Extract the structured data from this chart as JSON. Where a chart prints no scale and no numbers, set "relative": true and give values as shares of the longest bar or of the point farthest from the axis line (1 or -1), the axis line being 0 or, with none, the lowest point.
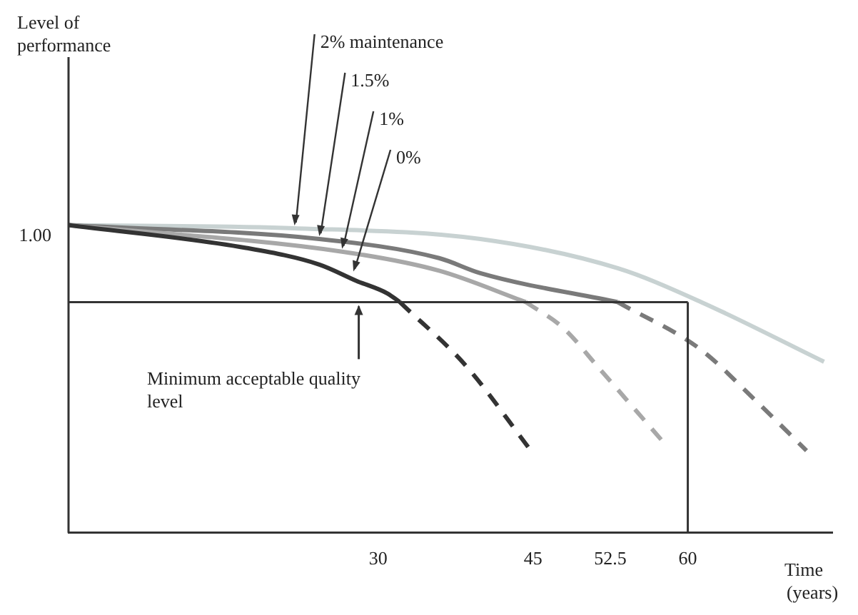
{
  "chart_data": {
    "type": "line",
    "relative": true,
    "xlabel": "Time (years)",
    "xlim": [
      0,
      74
    ],
    "xticks": [
      30,
      45,
      52.5,
      60
    ],
    "grid": false,
    "legend": false,
    "marker": "none",
    "series": [
      {
        "color": "#333333",
        "line_style": "solid",
        "x": [
          0,
          17.2,
          24.3,
          27.9,
          30.9,
          32.1
        ],
        "values": [
          1,
          0.926,
          0.872,
          0.819,
          0.778,
          0.75
        ]
      },
      {
        "color": "#333333",
        "line_style": "dashed",
        "x": [
          32.1,
          38.5,
          44.8
        ],
        "values": [
          0.75,
          0.543,
          0.267
        ]
      },
      {
        "color": "#a8a8a8",
        "line_style": "solid",
        "x": [
          0,
          26.5,
          35.9,
          44.3
        ],
        "values": [
          1,
          0.914,
          0.852,
          0.75
        ]
      },
      {
        "color": "#a8a8a8",
        "line_style": "dashed",
        "x": [
          44.3,
          47.9,
          51.5,
          57.6
        ],
        "values": [
          0.75,
          0.667,
          0.531,
          0.296
        ]
      },
      {
        "color": "#7a7a7a",
        "line_style": "solid",
        "x": [
          0,
          24.3,
          35.9,
          39.9,
          53.2
        ],
        "values": [
          1,
          0.955,
          0.893,
          0.844,
          0.75
        ]
      },
      {
        "color": "#7a7a7a",
        "line_style": "dashed",
        "x": [
          53.2,
          61.2,
          66.5,
          71.5
        ],
        "values": [
          0.75,
          0.597,
          0.432,
          0.267
        ]
      },
      {
        "color": "#c8d2d2",
        "line_style": "solid",
        "x": [
          0,
          21.9,
          39.9,
          53.2,
          61.3,
          73.2
        ],
        "values": [
          1,
          0.99,
          0.955,
          0.86,
          0.75,
          0.556
        ]
      }
    ],
    "ref_lines": [
      {
        "axis": "y",
        "value": 0.75,
        "label": "Minimum acceptable quality level",
        "color": "#333333"
      },
      {
        "axis": "x",
        "value": 60,
        "color": "#333333"
      }
    ],
    "annotations": [
      "Level of performance",
      {
        "text": "1.00",
        "x": 0,
        "y": 1
      },
      {
        "text": "2% maintenance",
        "x": 21.9,
        "y": 0.99
      },
      {
        "text": "1.5%",
        "x": 24.3,
        "y": 0.955
      },
      {
        "text": "1%",
        "x": 26.5,
        "y": 0.914
      },
      {
        "text": "0%",
        "x": 27.6,
        "y": 0.84
      }
    ]
  }
}
